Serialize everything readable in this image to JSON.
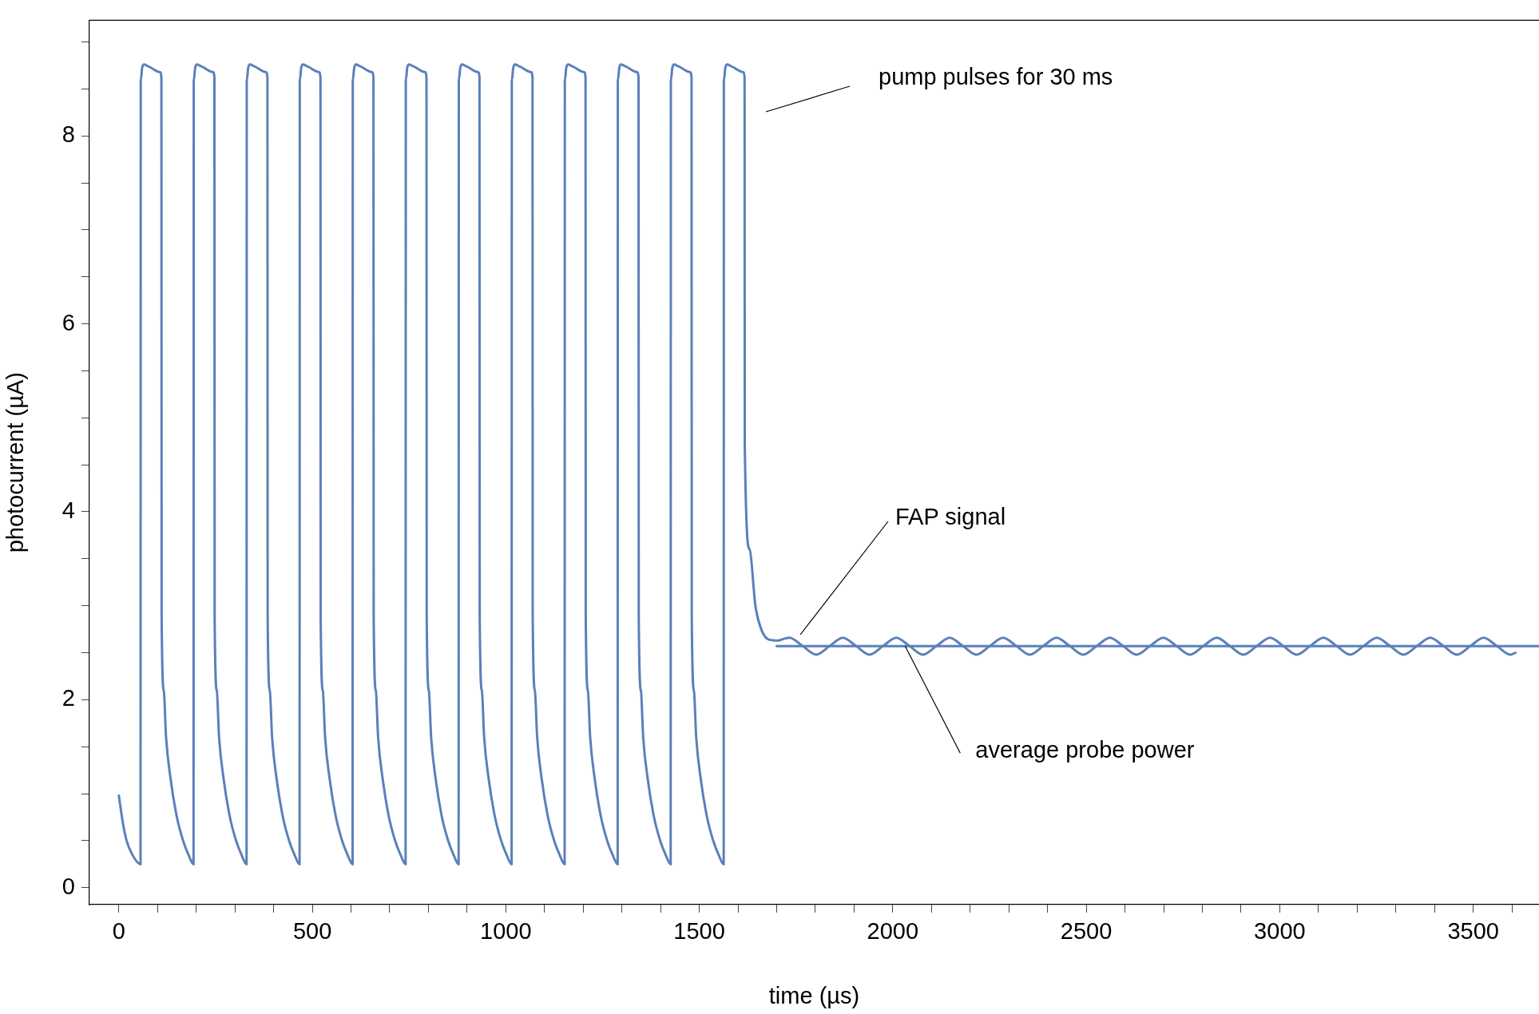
{
  "chart_data": {
    "type": "line",
    "xlabel": "time (µs)",
    "ylabel": "photocurrent (µA)",
    "xlim": [
      -76,
      3670
    ],
    "ylim": [
      -0.18,
      9.23
    ],
    "xticks": [
      0,
      {
        "value": 100,
        "label": null
      },
      {
        "value": 200,
        "label": null
      },
      {
        "value": 300,
        "label": null
      },
      {
        "value": 400,
        "label": null
      },
      500,
      {
        "value": 600,
        "label": null
      },
      {
        "value": 700,
        "label": null
      },
      {
        "value": 800,
        "label": null
      },
      {
        "value": 900,
        "label": null
      },
      1000,
      {
        "value": 1100,
        "label": null
      },
      {
        "value": 1200,
        "label": null
      },
      {
        "value": 1300,
        "label": null
      },
      {
        "value": 1400,
        "label": null
      },
      1500,
      {
        "value": 1600,
        "label": null
      },
      {
        "value": 1700,
        "label": null
      },
      {
        "value": 1800,
        "label": null
      },
      {
        "value": 1900,
        "label": null
      },
      2000,
      {
        "value": 2100,
        "label": null
      },
      {
        "value": 2200,
        "label": null
      },
      {
        "value": 2300,
        "label": null
      },
      {
        "value": 2400,
        "label": null
      },
      2500,
      {
        "value": 2600,
        "label": null
      },
      {
        "value": 2700,
        "label": null
      },
      {
        "value": 2800,
        "label": null
      },
      {
        "value": 2900,
        "label": null
      },
      3000,
      {
        "value": 3100,
        "label": null
      },
      {
        "value": 3200,
        "label": null
      },
      {
        "value": 3300,
        "label": null
      },
      {
        "value": 3400,
        "label": null
      },
      3500,
      {
        "value": 3600,
        "label": null
      }
    ],
    "yticks": [
      0,
      {
        "value": 0.5,
        "label": null
      },
      {
        "value": 1,
        "label": null
      },
      {
        "value": 1.5,
        "label": null
      },
      2,
      {
        "value": 2.5,
        "label": null
      },
      {
        "value": 3,
        "label": null
      },
      {
        "value": 3.5,
        "label": null
      },
      4,
      {
        "value": 4.5,
        "label": null
      },
      {
        "value": 5,
        "label": null
      },
      {
        "value": 5.5,
        "label": null
      },
      6,
      {
        "value": 6.5,
        "label": null
      },
      {
        "value": 7,
        "label": null
      },
      {
        "value": 7.5,
        "label": null
      },
      8,
      {
        "value": 8.5,
        "label": null
      },
      {
        "value": 9,
        "label": null
      }
    ],
    "grid": false,
    "legend": false,
    "marker": "none",
    "series": [
      {
        "color": "#5b80ba",
        "x": [
          0,
          10,
          20,
          35,
          56,
          56.5,
          57,
          60,
          65,
          76,
          106,
          110,
          110.5,
          116,
          122,
          134,
          150,
          166,
          180,
          193,
          193.5,
          194,
          197,
          202,
          213,
          243,
          247,
          247.5,
          253,
          259,
          271,
          287,
          303,
          317,
          330,
          330.5,
          331,
          334,
          339,
          350,
          380,
          384,
          384.5,
          390,
          396,
          408,
          424,
          440,
          454,
          467,
          467.5,
          468,
          471,
          476,
          487,
          517,
          521,
          521.5,
          527,
          533,
          545,
          561,
          577,
          591,
          604,
          604.5,
          605,
          608,
          613,
          624,
          654,
          658,
          658.5,
          664,
          670,
          682,
          698,
          714,
          728,
          741,
          741.5,
          742,
          745,
          750,
          761,
          791,
          795,
          795.5,
          801,
          807,
          819,
          835,
          851,
          865,
          878,
          878.5,
          879,
          882,
          887,
          898,
          928,
          932,
          932.5,
          938,
          944,
          956,
          972,
          988,
          1002,
          1015,
          1015.5,
          1016,
          1019,
          1024,
          1035,
          1065,
          1069,
          1069.5,
          1075,
          1081,
          1093,
          1109,
          1125,
          1139,
          1152,
          1152.5,
          1153,
          1156,
          1161,
          1172,
          1202,
          1206,
          1206.5,
          1212,
          1218,
          1230,
          1246,
          1262,
          1276,
          1289,
          1289.5,
          1290,
          1293,
          1298,
          1309,
          1339,
          1343,
          1343.5,
          1349,
          1355,
          1367,
          1383,
          1399,
          1413,
          1426,
          1426.5,
          1427,
          1430,
          1435,
          1446,
          1476,
          1480,
          1480.5,
          1486,
          1492,
          1504,
          1520,
          1536,
          1550,
          1563,
          1563.5,
          1564,
          1567,
          1572,
          1583,
          1613,
          1617,
          1617.5,
          1630,
          1645,
          1660,
          1680,
          1705,
          1720,
          1733,
          1767.5,
          1802,
          1836.5,
          1871,
          1905.5,
          1940,
          1974.5,
          2009,
          2043.5,
          2078,
          2112.5,
          2147,
          2181.5,
          2216,
          2250.5,
          2285,
          2319.5,
          2354,
          2388.5,
          2423,
          2457.5,
          2492,
          2526.5,
          2561,
          2595.5,
          2630,
          2664.5,
          2699,
          2733.5,
          2768,
          2802.5,
          2837,
          2871.5,
          2906,
          2940.5,
          2975,
          3009.5,
          3044,
          3078.5,
          3113,
          3147.5,
          3182,
          3216.5,
          3251,
          3285.5,
          3320,
          3354.5,
          3389,
          3423.5,
          3458,
          3492.5,
          3527,
          3561.5,
          3596,
          3609
        ],
        "values": [
          0.98,
          0.7,
          0.5,
          0.35,
          0.25,
          8.58,
          8.6,
          8.72,
          8.76,
          8.74,
          8.68,
          8.62,
          2.9,
          2.1,
          1.6,
          1.15,
          0.75,
          0.5,
          0.35,
          0.25,
          8.58,
          8.6,
          8.72,
          8.76,
          8.74,
          8.68,
          8.62,
          2.9,
          2.1,
          1.6,
          1.15,
          0.75,
          0.5,
          0.35,
          0.25,
          8.58,
          8.6,
          8.72,
          8.76,
          8.74,
          8.68,
          8.62,
          2.9,
          2.1,
          1.6,
          1.15,
          0.75,
          0.5,
          0.35,
          0.25,
          8.58,
          8.6,
          8.72,
          8.76,
          8.74,
          8.68,
          8.62,
          2.9,
          2.1,
          1.6,
          1.15,
          0.75,
          0.5,
          0.35,
          0.25,
          8.58,
          8.6,
          8.72,
          8.76,
          8.74,
          8.68,
          8.62,
          2.9,
          2.1,
          1.6,
          1.15,
          0.75,
          0.5,
          0.35,
          0.25,
          8.58,
          8.6,
          8.72,
          8.76,
          8.74,
          8.68,
          8.62,
          2.9,
          2.1,
          1.6,
          1.15,
          0.75,
          0.5,
          0.35,
          0.25,
          8.58,
          8.6,
          8.72,
          8.76,
          8.74,
          8.68,
          8.62,
          2.9,
          2.1,
          1.6,
          1.15,
          0.75,
          0.5,
          0.35,
          0.25,
          8.58,
          8.6,
          8.72,
          8.76,
          8.74,
          8.68,
          8.62,
          2.9,
          2.1,
          1.6,
          1.15,
          0.75,
          0.5,
          0.35,
          0.25,
          8.58,
          8.6,
          8.72,
          8.76,
          8.74,
          8.68,
          8.62,
          2.9,
          2.1,
          1.6,
          1.15,
          0.75,
          0.5,
          0.35,
          0.25,
          8.58,
          8.6,
          8.72,
          8.76,
          8.74,
          8.68,
          8.62,
          2.9,
          2.1,
          1.6,
          1.15,
          0.75,
          0.5,
          0.35,
          0.25,
          8.58,
          8.6,
          8.72,
          8.76,
          8.74,
          8.68,
          8.62,
          2.9,
          2.1,
          1.6,
          1.15,
          0.75,
          0.5,
          0.35,
          0.25,
          8.58,
          8.6,
          8.72,
          8.76,
          8.74,
          8.68,
          8.62,
          4.7,
          3.6,
          3.0,
          2.75,
          2.64,
          2.63,
          2.65,
          2.66,
          2.57,
          2.48,
          2.57,
          2.66,
          2.57,
          2.48,
          2.57,
          2.66,
          2.57,
          2.48,
          2.57,
          2.66,
          2.57,
          2.48,
          2.57,
          2.66,
          2.57,
          2.48,
          2.57,
          2.66,
          2.57,
          2.48,
          2.57,
          2.66,
          2.57,
          2.48,
          2.57,
          2.66,
          2.57,
          2.48,
          2.57,
          2.66,
          2.57,
          2.48,
          2.57,
          2.66,
          2.57,
          2.48,
          2.57,
          2.66,
          2.57,
          2.48,
          2.57,
          2.66,
          2.57,
          2.48,
          2.57,
          2.66,
          2.57,
          2.48,
          2.57,
          2.66,
          2.57,
          2.48,
          2.5
        ]
      },
      {
        "color": "#5b80ba",
        "x": [
          1700,
          3670
        ],
        "values": [
          2.57,
          2.57
        ]
      }
    ],
    "annotations": [
      "pump pulses for 30 ms",
      "FAP signal",
      {
        "text": "average probe power",
        "x": 2032,
        "y": 2.57
      }
    ]
  }
}
